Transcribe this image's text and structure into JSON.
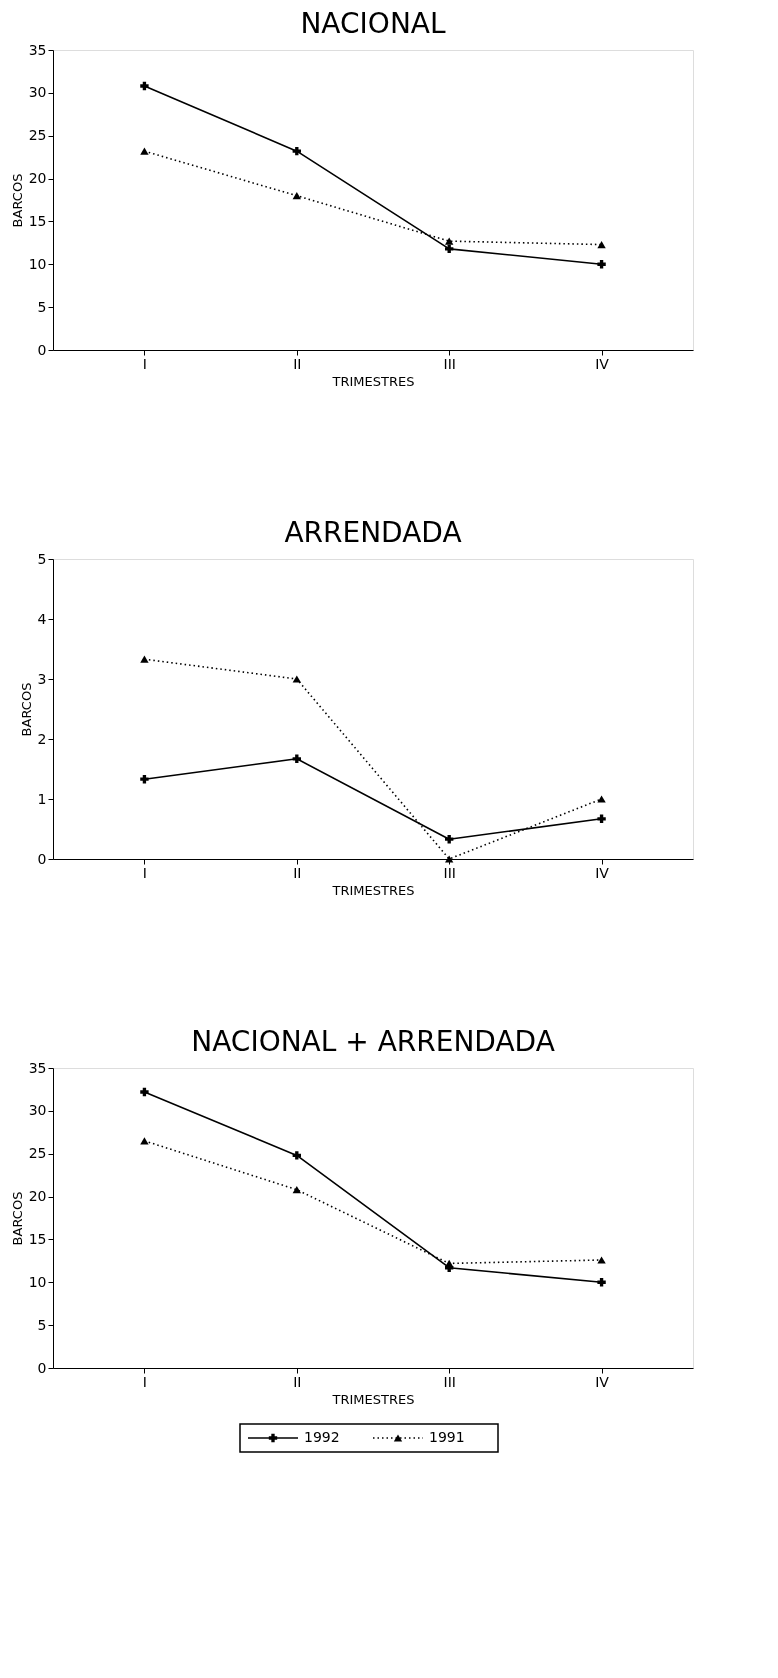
{
  "chart_data": [
    {
      "type": "line",
      "title": "NACIONAL",
      "xlabel": "TRIMESTRES",
      "ylabel": "BARCOS",
      "categories": [
        "I",
        "II",
        "III",
        "IV"
      ],
      "ylim": [
        0,
        35
      ],
      "yticks": [
        0,
        5,
        10,
        15,
        20,
        25,
        30,
        35
      ],
      "grid": false,
      "legend": false,
      "series": [
        {
          "color": "#000000",
          "marker": "cross",
          "line_style": "solid",
          "values": [
            30.8,
            23.2,
            11.8,
            10.0
          ]
        },
        {
          "color": "#000000",
          "marker": "triangle",
          "line_style": "dotted",
          "values": [
            23.2,
            18.0,
            12.7,
            12.3
          ]
        }
      ]
    },
    {
      "type": "line",
      "title": "ARRENDADA",
      "xlabel": "TRIMESTRES",
      "ylabel": "BARCOS",
      "categories": [
        "I",
        "II",
        "III",
        "IV"
      ],
      "ylim": [
        0,
        5
      ],
      "yticks": [
        0,
        1,
        2,
        3,
        4,
        5
      ],
      "grid": false,
      "legend": false,
      "series": [
        {
          "color": "#000000",
          "marker": "cross",
          "line_style": "solid",
          "values": [
            1.33,
            1.67,
            0.33,
            0.67
          ]
        },
        {
          "color": "#000000",
          "marker": "triangle",
          "line_style": "dotted",
          "values": [
            3.33,
            3.0,
            0.0,
            1.0
          ]
        }
      ]
    },
    {
      "type": "line",
      "title": "NACIONAL + ARRENDADA",
      "xlabel": "TRIMESTRES",
      "ylabel": "BARCOS",
      "categories": [
        "I",
        "II",
        "III",
        "IV"
      ],
      "ylim": [
        0,
        35
      ],
      "yticks": [
        0,
        5,
        10,
        15,
        20,
        25,
        30,
        35
      ],
      "grid": false,
      "legend": "bottom",
      "series": [
        {
          "name": "1992",
          "color": "#000000",
          "marker": "cross",
          "line_style": "solid",
          "values": [
            32.2,
            24.8,
            11.7,
            10.0
          ]
        },
        {
          "name": "1991",
          "color": "#000000",
          "marker": "triangle",
          "line_style": "dotted",
          "values": [
            26.5,
            20.8,
            12.2,
            12.6
          ]
        }
      ]
    }
  ]
}
